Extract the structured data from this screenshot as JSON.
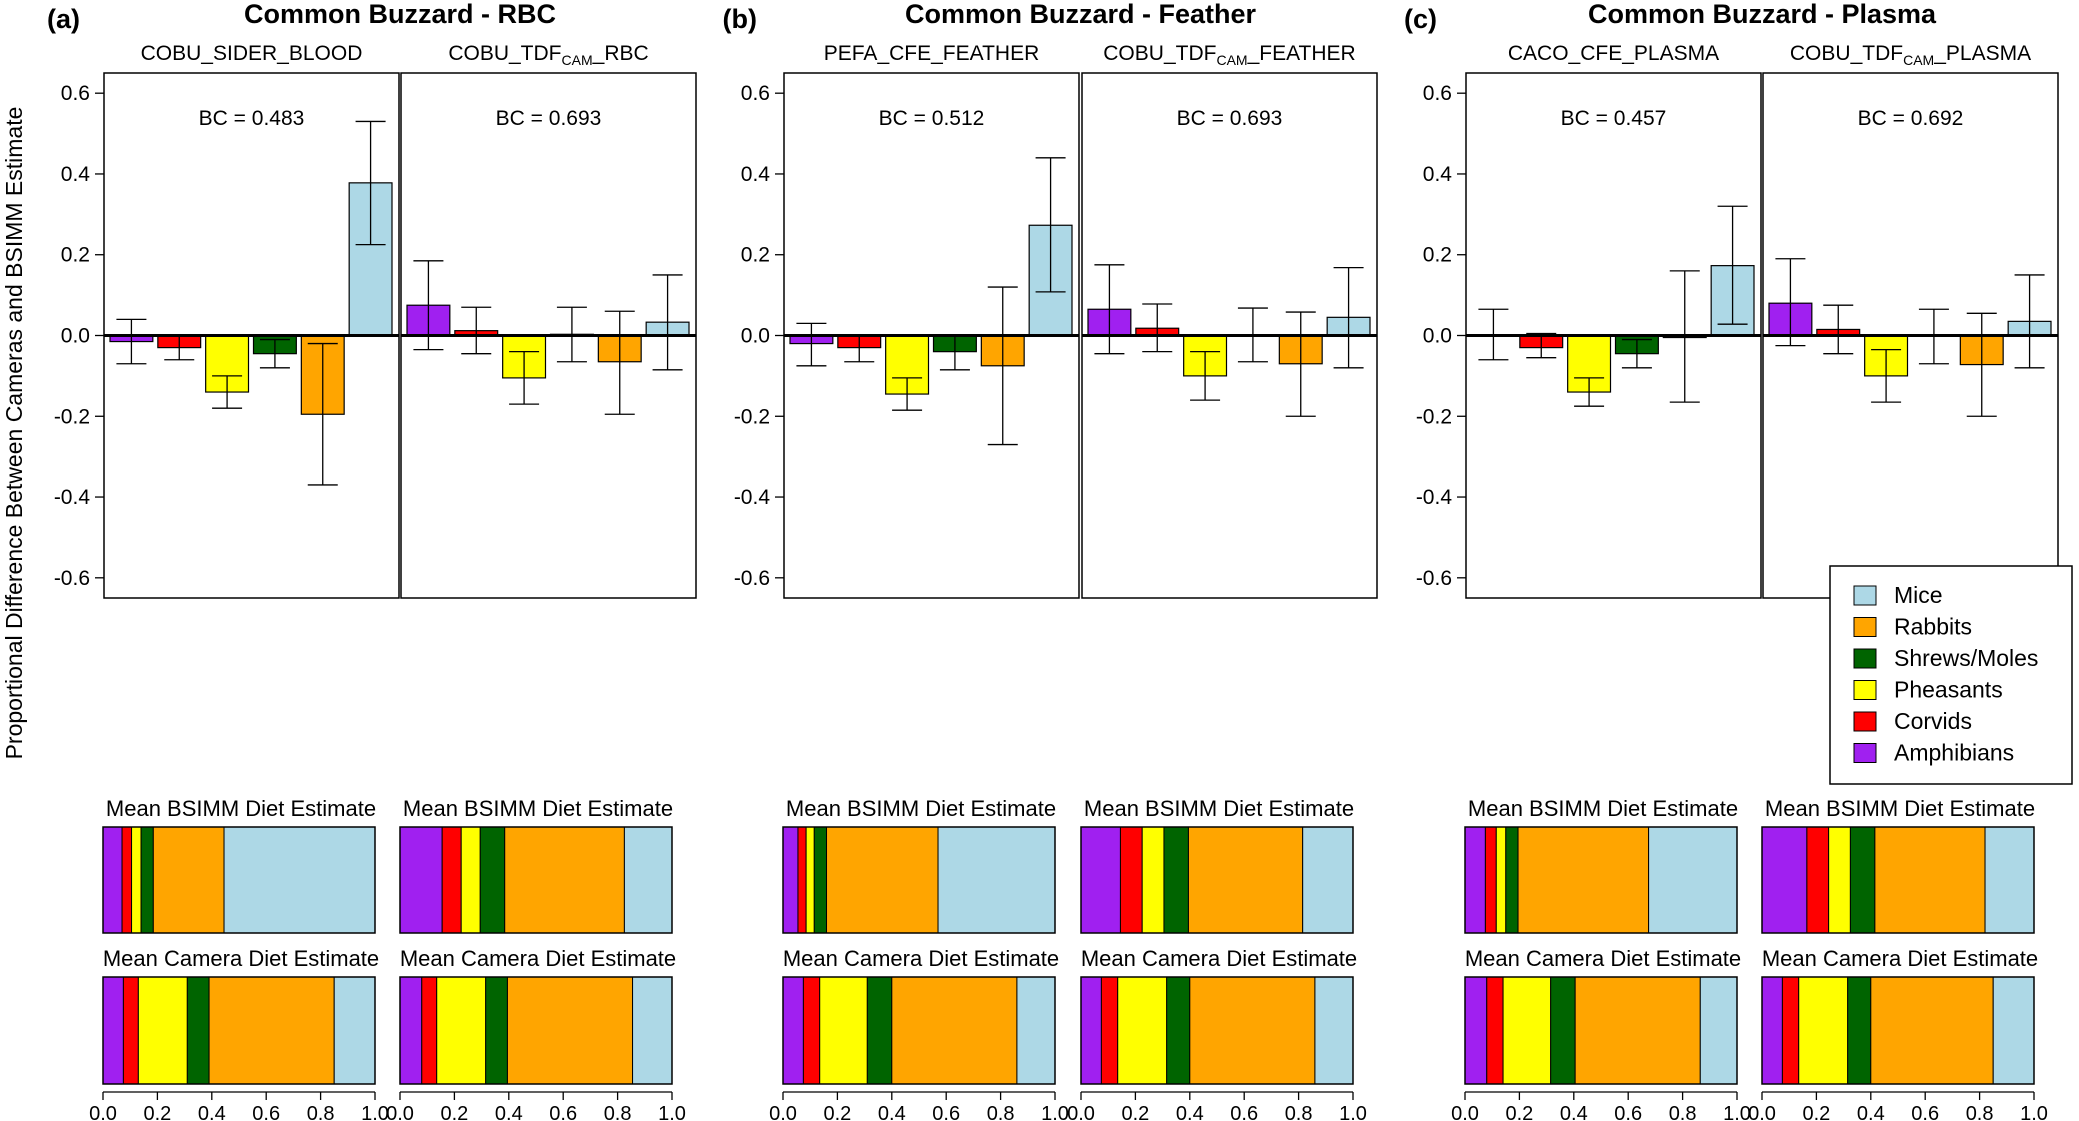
{
  "figure": {
    "y_axis_label": "Proportional Difference Between Cameras and BSIMM Estimate",
    "bsimm_label": "Mean BSIMM Diet Estimate",
    "camera_label": "Mean Camera Diet Estimate"
  },
  "chart_data": {
    "type": "bar",
    "ylim": [
      -0.65,
      0.65
    ],
    "yticks": [
      -0.6,
      -0.4,
      -0.2,
      0.0,
      0.2,
      0.4,
      0.6
    ],
    "ytick_labels": [
      "-0.6",
      "-0.4",
      "-0.2",
      "0.0",
      "0.2",
      "0.4",
      "0.6"
    ],
    "composition_xticks": [
      "0.0",
      "0.2",
      "0.4",
      "0.6",
      "0.8",
      "1.0"
    ],
    "categories": [
      "Amphibians",
      "Corvids",
      "Pheasants",
      "Shrews/Moles",
      "Rabbits",
      "Mice"
    ],
    "colors": {
      "Amphibians": "#a020f0",
      "Corvids": "#ff0000",
      "Pheasants": "#ffff00",
      "Shrews/Moles": "#006400",
      "Rabbits": "#ffa500",
      "Mice": "#add8e6"
    },
    "legend": {
      "placement": "bottom-right",
      "entries": [
        "Mice",
        "Rabbits",
        "Shrews/Moles",
        "Pheasants",
        "Corvids",
        "Amphibians"
      ]
    },
    "groups": [
      {
        "label": "(a)",
        "title": "Common Buzzard - RBC",
        "panels": [
          {
            "title_parts": [
              "COBU_SIDER_BLOOD"
            ],
            "bc": "BC = 0.483",
            "values": [
              -0.015,
              -0.03,
              -0.14,
              -0.045,
              -0.195,
              0.378
            ],
            "err_low": [
              -0.07,
              -0.06,
              -0.18,
              -0.08,
              -0.37,
              0.225
            ],
            "err_high": [
              0.04,
              0.0,
              -0.1,
              -0.01,
              -0.02,
              0.53
            ],
            "bsimm": [
              0.07,
              0.035,
              0.035,
              0.045,
              0.26,
              0.555
            ],
            "camera": [
              0.075,
              0.055,
              0.18,
              0.08,
              0.46,
              0.15
            ]
          },
          {
            "title_parts": [
              "COBU_TDF",
              "CAM",
              "_RBC"
            ],
            "bc": "BC = 0.693",
            "values": [
              0.075,
              0.012,
              -0.105,
              0.003,
              -0.065,
              0.033
            ],
            "err_low": [
              -0.035,
              -0.045,
              -0.17,
              -0.065,
              -0.195,
              -0.085
            ],
            "err_high": [
              0.185,
              0.07,
              -0.04,
              0.07,
              0.06,
              0.15
            ],
            "bsimm": [
              0.155,
              0.07,
              0.07,
              0.09,
              0.44,
              0.175
            ],
            "camera": [
              0.08,
              0.055,
              0.18,
              0.08,
              0.46,
              0.145
            ]
          }
        ]
      },
      {
        "label": "(b)",
        "title": "Common Buzzard - Feather",
        "panels": [
          {
            "title_parts": [
              "PEFA_CFE_FEATHER"
            ],
            "bc": "BC = 0.512",
            "values": [
              -0.02,
              -0.03,
              -0.145,
              -0.04,
              -0.075,
              0.273
            ],
            "err_low": [
              -0.075,
              -0.065,
              -0.185,
              -0.085,
              -0.27,
              0.108
            ],
            "err_high": [
              0.03,
              0.0,
              -0.105,
              0.0,
              0.12,
              0.44
            ],
            "bsimm": [
              0.055,
              0.03,
              0.03,
              0.045,
              0.41,
              0.43
            ],
            "camera": [
              0.075,
              0.06,
              0.175,
              0.09,
              0.46,
              0.14
            ]
          },
          {
            "title_parts": [
              "COBU_TDF",
              "CAM",
              "_FEATHER"
            ],
            "bc": "BC = 0.693",
            "values": [
              0.065,
              0.018,
              -0.1,
              0.0,
              -0.07,
              0.045
            ],
            "err_low": [
              -0.045,
              -0.04,
              -0.16,
              -0.065,
              -0.2,
              -0.08
            ],
            "err_high": [
              0.175,
              0.078,
              -0.04,
              0.068,
              0.058,
              0.168
            ],
            "bsimm": [
              0.145,
              0.08,
              0.08,
              0.09,
              0.42,
              0.185
            ],
            "camera": [
              0.075,
              0.06,
              0.18,
              0.085,
              0.46,
              0.14
            ]
          }
        ]
      },
      {
        "label": "(c)",
        "title": "Common Buzzard - Plasma",
        "panels": [
          {
            "title_parts": [
              "CACO_CFE_PLASMA"
            ],
            "bc": "BC = 0.457",
            "values": [
              0.0,
              -0.03,
              -0.14,
              -0.045,
              -0.005,
              0.173
            ],
            "err_low": [
              -0.06,
              -0.055,
              -0.175,
              -0.08,
              -0.165,
              0.028
            ],
            "err_high": [
              0.065,
              0.005,
              -0.105,
              -0.01,
              0.16,
              0.32
            ],
            "bsimm": [
              0.075,
              0.04,
              0.035,
              0.045,
              0.48,
              0.325
            ],
            "camera": [
              0.08,
              0.06,
              0.175,
              0.09,
              0.46,
              0.135
            ]
          },
          {
            "title_parts": [
              "COBU_TDF",
              "CAM",
              "_PLASMA"
            ],
            "bc": "BC = 0.692",
            "values": [
              0.08,
              0.015,
              -0.1,
              0.0,
              -0.072,
              0.035
            ],
            "err_low": [
              -0.025,
              -0.045,
              -0.165,
              -0.07,
              -0.2,
              -0.08
            ],
            "err_high": [
              0.19,
              0.075,
              -0.035,
              0.065,
              0.055,
              0.15
            ],
            "bsimm": [
              0.165,
              0.08,
              0.08,
              0.09,
              0.405,
              0.18
            ],
            "camera": [
              0.075,
              0.06,
              0.18,
              0.085,
              0.45,
              0.15
            ]
          }
        ]
      }
    ]
  }
}
